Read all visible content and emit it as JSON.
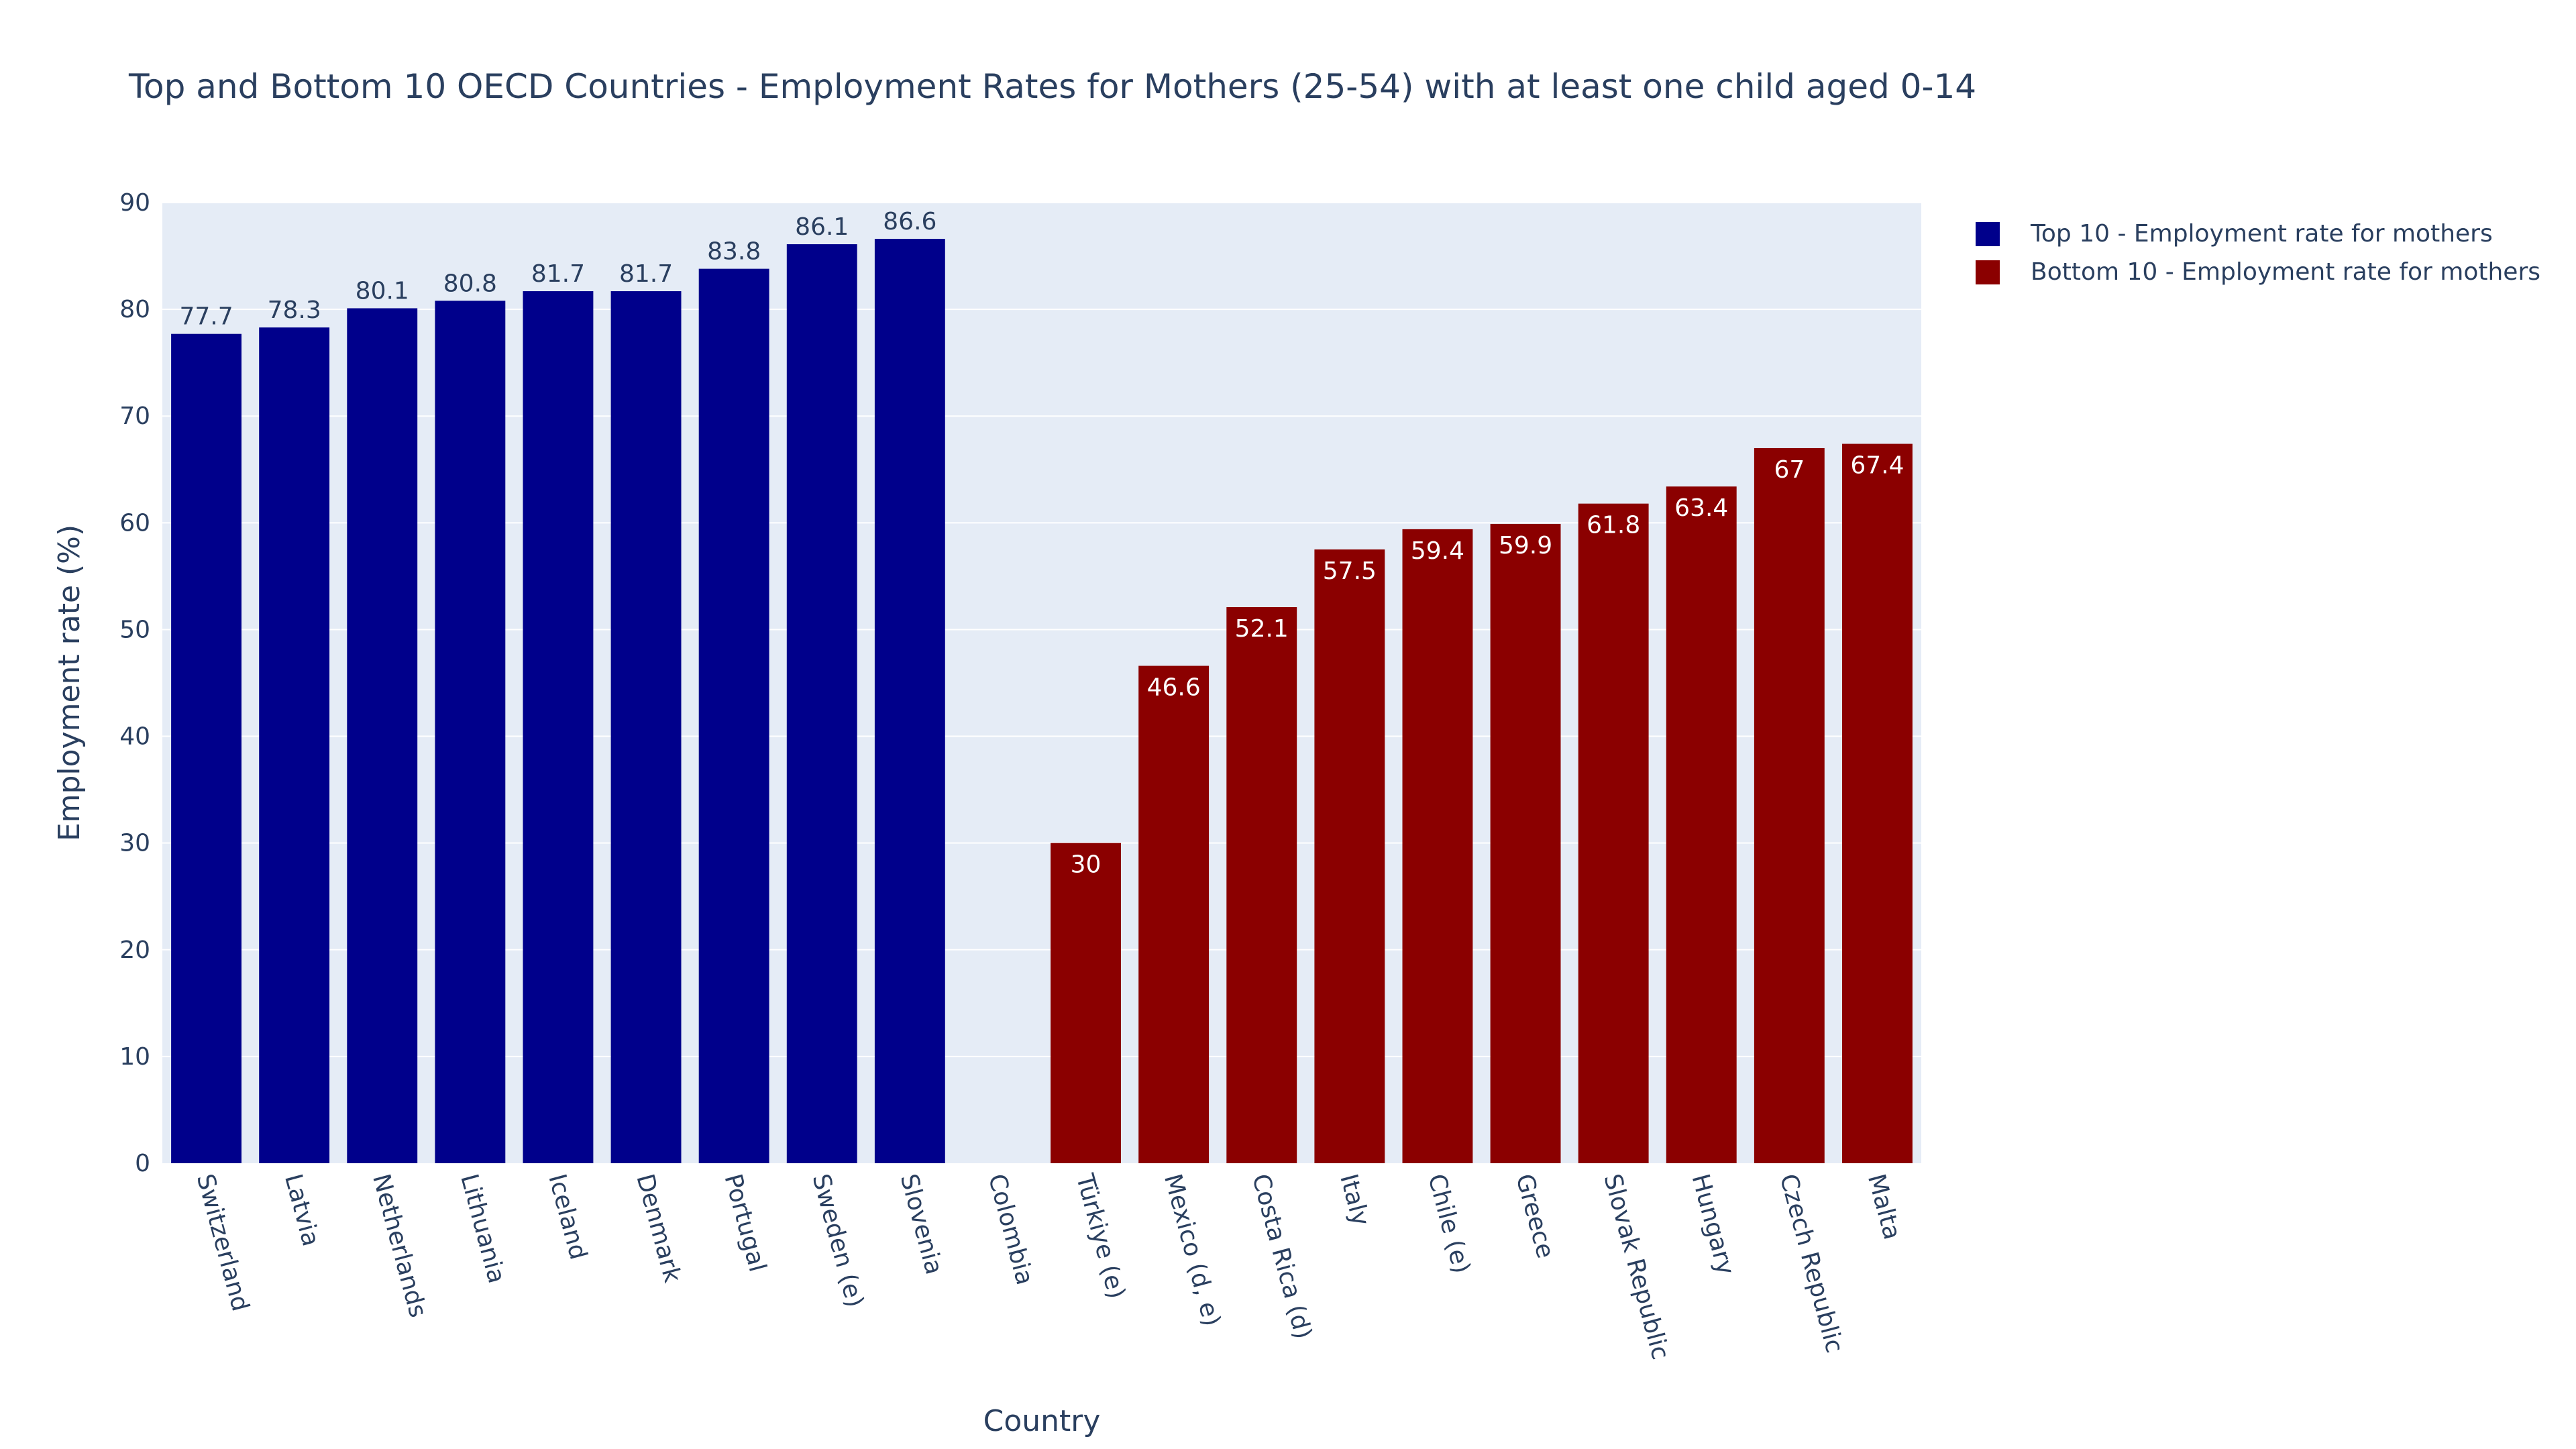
{
  "chart_data": {
    "type": "bar",
    "title": "Top and Bottom 10 OECD Countries - Employment Rates for Mothers (25-54) with at least one child aged 0-14",
    "xlabel": "Country",
    "ylabel": "Employment rate (%)",
    "ylim": [
      0,
      90
    ],
    "y_ticks": [
      0,
      10,
      20,
      30,
      40,
      50,
      60,
      70,
      80,
      90
    ],
    "grid": true,
    "legend_position": "top-right",
    "categories": [
      "Switzerland",
      "Latvia",
      "Netherlands",
      "Lithuania",
      "Iceland",
      "Denmark",
      "Portugal",
      "Sweden (e)",
      "Slovenia",
      "Colombia",
      "Türkiye (e)",
      "Mexico (d, e)",
      "Costa Rica (d)",
      "Italy",
      "Chile (e)",
      "Greece",
      "Slovak Republic",
      "Hungary",
      "Czech Republic",
      "Malta"
    ],
    "series": [
      {
        "name": "Top 10 - Employment rate for mothers",
        "color": "#00008b",
        "text_position": "outside",
        "values": [
          77.7,
          78.3,
          80.1,
          80.8,
          81.7,
          81.7,
          83.8,
          86.1,
          86.6,
          null,
          null,
          null,
          null,
          null,
          null,
          null,
          null,
          null,
          null,
          null
        ]
      },
      {
        "name": "Bottom 10 - Employment rate for mothers",
        "color": "#8b0000",
        "text_position": "inside",
        "values": [
          null,
          null,
          null,
          null,
          null,
          null,
          null,
          null,
          null,
          null,
          30,
          46.6,
          52.1,
          57.5,
          59.4,
          59.9,
          61.8,
          63.4,
          67,
          67.4
        ]
      }
    ]
  }
}
